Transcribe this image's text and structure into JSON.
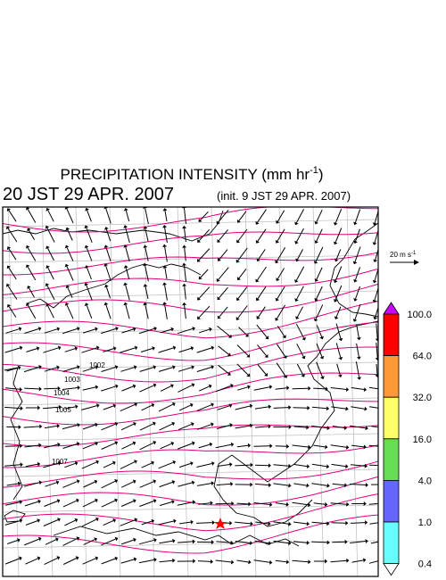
{
  "header": {
    "title": "PRECIPITATION INTENSITY (mm hr",
    "title_unit_exponent": "-1",
    "title_close": ")",
    "valid_time": "20 JST 29 APR. 2007",
    "init_time": "(init. 9 JST 29 APR. 2007)"
  },
  "wind_scale": {
    "label": "20 m s",
    "label_exponent": "-1"
  },
  "colorbar": {
    "levels": [
      "100.0",
      "64.0",
      "32.0",
      "16.0",
      "4.0",
      "1.0",
      "0.4"
    ],
    "colors": [
      "#cc00ff",
      "#ff0000",
      "#ff9933",
      "#ffff66",
      "#66dd55",
      "#6666ff",
      "#66ffff",
      "#ffffff"
    ]
  },
  "isobar_labels": [
    "1002",
    "1003",
    "1004",
    "1005",
    "1007"
  ]
}
